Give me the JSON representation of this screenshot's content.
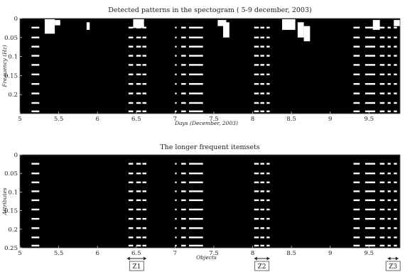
{
  "chart_data": [
    {
      "type": "heatmap",
      "title": "Detected patterns in the spectogram ( 5-9 december, 2003)",
      "xlabel": "Days (December, 2003)",
      "ylabel": "Frequency (Hz)",
      "xlim": [
        5,
        9.9
      ],
      "ylim": [
        0,
        0.25
      ],
      "y_inverted": true,
      "background_color": "#000000",
      "mark_color": "#ffffff",
      "x_ticks": [
        "5",
        "5.5",
        "6",
        "6.5",
        "7",
        "7.5",
        "8",
        "8.5",
        "9",
        "9.5"
      ],
      "y_ticks": [
        "0",
        "0.05",
        "0.1",
        "0.15",
        "0.2"
      ],
      "row_frequencies": [
        0.024,
        0.05,
        0.074,
        0.098,
        0.122,
        0.147,
        0.172,
        0.197,
        0.222,
        0.244
      ],
      "patterns": [
        {
          "x0": 5.15,
          "x1": 5.25,
          "rows": "all"
        },
        {
          "x0": 6.4,
          "x1": 6.46,
          "rows": "all"
        },
        {
          "x0": 6.5,
          "x1": 6.56,
          "rows": "all"
        },
        {
          "x0": 6.58,
          "x1": 6.63,
          "rows": "all"
        },
        {
          "x0": 7.0,
          "x1": 7.02,
          "rows": "all"
        },
        {
          "x0": 7.08,
          "x1": 7.14,
          "rows": "all"
        },
        {
          "x0": 7.18,
          "x1": 7.36,
          "rows": "all"
        },
        {
          "x0": 8.02,
          "x1": 8.08,
          "rows": "all"
        },
        {
          "x0": 8.1,
          "x1": 8.15,
          "rows": "all"
        },
        {
          "x0": 8.18,
          "x1": 8.22,
          "rows": "all"
        },
        {
          "x0": 9.3,
          "x1": 9.38,
          "rows": "all"
        },
        {
          "x0": 9.45,
          "x1": 9.58,
          "rows": "all"
        },
        {
          "x0": 9.64,
          "x1": 9.7,
          "rows": "all"
        },
        {
          "x0": 9.74,
          "x1": 9.78,
          "rows": "all"
        },
        {
          "x0": 9.82,
          "x1": 9.86,
          "rows": "all"
        }
      ],
      "noise_blobs": [
        {
          "x0": 5.32,
          "x1": 5.45,
          "y0": 0.002,
          "y1": 0.04
        },
        {
          "x0": 5.45,
          "x1": 5.52,
          "y0": 0.004,
          "y1": 0.018
        },
        {
          "x0": 5.86,
          "x1": 5.9,
          "y0": 0.01,
          "y1": 0.03
        },
        {
          "x0": 6.46,
          "x1": 6.6,
          "y0": 0.002,
          "y1": 0.025
        },
        {
          "x0": 7.55,
          "x1": 7.66,
          "y0": 0.004,
          "y1": 0.02
        },
        {
          "x0": 7.62,
          "x1": 7.7,
          "y0": 0.01,
          "y1": 0.05
        },
        {
          "x0": 8.38,
          "x1": 8.55,
          "y0": 0.002,
          "y1": 0.03
        },
        {
          "x0": 8.58,
          "x1": 8.66,
          "y0": 0.01,
          "y1": 0.05
        },
        {
          "x0": 8.66,
          "x1": 8.74,
          "y0": 0.02,
          "y1": 0.06
        },
        {
          "x0": 9.55,
          "x1": 9.64,
          "y0": 0.004,
          "y1": 0.03
        },
        {
          "x0": 9.82,
          "x1": 9.9,
          "y0": 0.004,
          "y1": 0.02
        }
      ]
    },
    {
      "type": "heatmap",
      "title": "The longer frequent itemsets",
      "xlabel": "Objects",
      "ylabel": "Attributes",
      "xlim": [
        5,
        9.9
      ],
      "ylim": [
        0,
        0.25
      ],
      "y_inverted": true,
      "background_color": "#000000",
      "mark_color": "#ffffff",
      "x_ticks": [
        "5",
        "5.5",
        "6",
        "6.5",
        "7",
        "7.5",
        "8",
        "8.5",
        "9",
        "9.5"
      ],
      "y_ticks": [
        "0",
        "0.05",
        "0.1",
        "0.15",
        "0.2",
        "0.25"
      ],
      "row_frequencies": [
        0.024,
        0.05,
        0.074,
        0.098,
        0.122,
        0.147,
        0.172,
        0.197,
        0.222,
        0.244
      ],
      "patterns": [
        {
          "x0": 5.15,
          "x1": 5.25,
          "rows": "all"
        },
        {
          "x0": 6.4,
          "x1": 6.46,
          "rows": "all"
        },
        {
          "x0": 6.5,
          "x1": 6.56,
          "rows": "all"
        },
        {
          "x0": 6.58,
          "x1": 6.63,
          "rows": "all"
        },
        {
          "x0": 7.0,
          "x1": 7.02,
          "rows": "all"
        },
        {
          "x0": 7.08,
          "x1": 7.14,
          "rows": "all"
        },
        {
          "x0": 7.18,
          "x1": 7.36,
          "rows": "all"
        },
        {
          "x0": 8.02,
          "x1": 8.08,
          "rows": "all"
        },
        {
          "x0": 8.1,
          "x1": 8.15,
          "rows": "all"
        },
        {
          "x0": 8.18,
          "x1": 8.22,
          "rows": "all"
        },
        {
          "x0": 9.3,
          "x1": 9.38,
          "rows": "all"
        },
        {
          "x0": 9.45,
          "x1": 9.58,
          "rows": "all"
        },
        {
          "x0": 9.64,
          "x1": 9.7,
          "rows": "all"
        },
        {
          "x0": 9.74,
          "x1": 9.78,
          "rows": "all"
        },
        {
          "x0": 9.82,
          "x1": 9.86,
          "rows": "all"
        }
      ],
      "zones": [
        {
          "label": "Z1",
          "x0": 6.38,
          "x1": 6.63
        },
        {
          "label": "Z2",
          "x0": 8.02,
          "x1": 8.22
        },
        {
          "label": "Z3",
          "x0": 9.74,
          "x1": 9.88
        }
      ]
    }
  ]
}
